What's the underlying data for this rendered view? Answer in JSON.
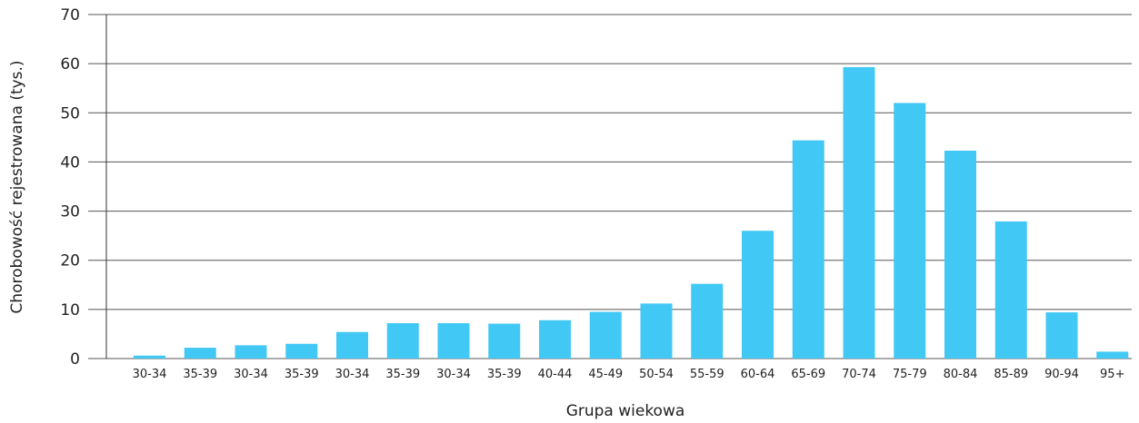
{
  "chart_data": {
    "type": "bar",
    "title": "",
    "xlabel": "Grupa wiekowa",
    "ylabel": "Chorobowość rejestrowana (tys.)",
    "ylim": [
      0,
      70
    ],
    "yticks": [
      0,
      10,
      20,
      30,
      40,
      50,
      60,
      70
    ],
    "grid": true,
    "legend": "none",
    "bar_color": "#42c8f4",
    "categories": [
      "30-34",
      "35-39",
      "30-34",
      "35-39",
      "30-34",
      "35-39",
      "30-34",
      "35-39",
      "40-44",
      "45-49",
      "50-54",
      "55-59",
      "60-64",
      "65-69",
      "70-74",
      "75-79",
      "80-84",
      "85-89",
      "90-94",
      "95+"
    ],
    "values": [
      0.6,
      2.2,
      2.7,
      3.0,
      5.4,
      7.2,
      7.2,
      7.1,
      7.8,
      9.5,
      11.2,
      15.2,
      26.0,
      44.4,
      59.3,
      52.0,
      42.3,
      27.9,
      9.4,
      1.4
    ]
  }
}
